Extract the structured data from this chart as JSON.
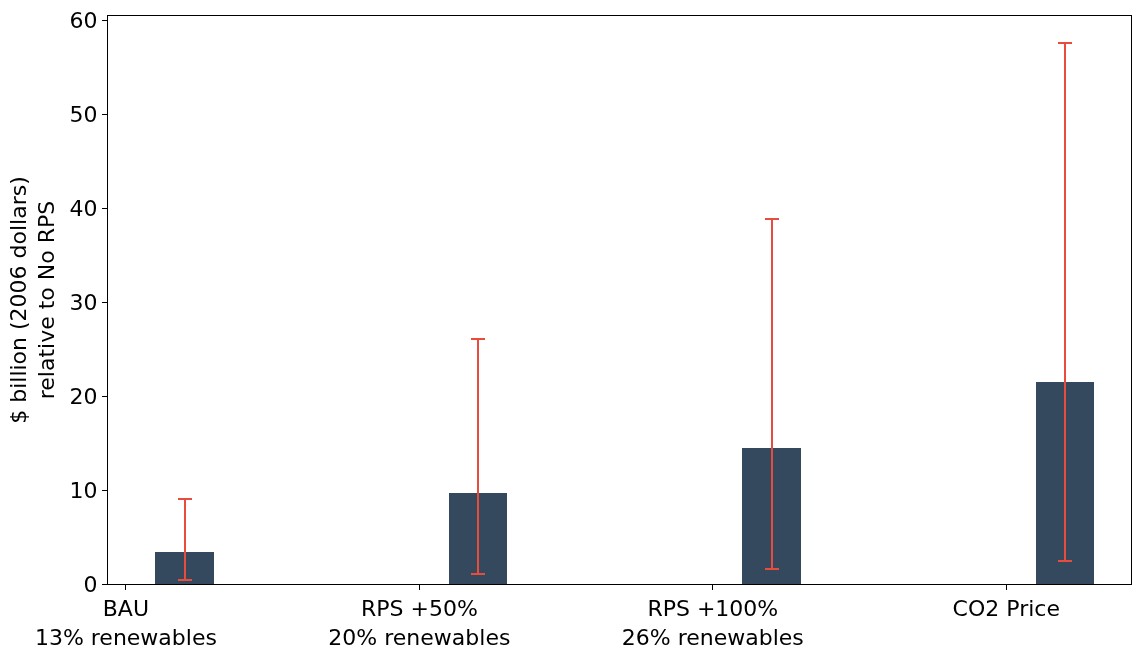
{
  "chart_data": {
    "type": "bar",
    "ylabel": "$ billion (2006 dollars)\nrelative to No RPS",
    "categories": [
      "BAU\n13% renewables",
      "RPS +50%\n20% renewables",
      "RPS +100%\n26% renewables",
      "CO2 Price"
    ],
    "values": [
      3.4,
      9.7,
      14.5,
      21.5
    ],
    "color": "#34495e",
    "errors": [
      [
        0.4,
        9.1
      ],
      [
        1.1,
        26.1
      ],
      [
        1.6,
        38.9
      ],
      [
        2.4,
        57.6
      ]
    ],
    "ylim": [
      0,
      60.5
    ],
    "yticks": [
      0,
      10,
      20,
      30,
      40,
      50,
      60
    ]
  }
}
